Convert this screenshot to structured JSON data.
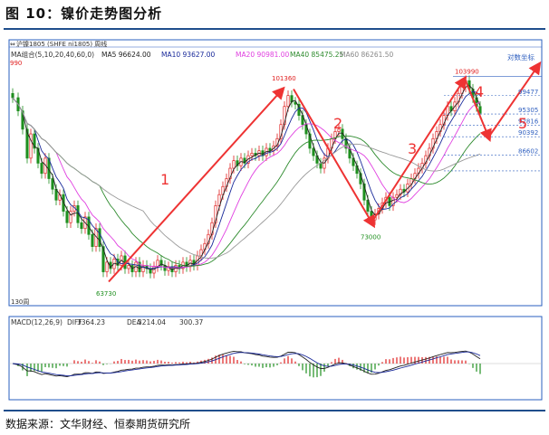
{
  "figure": {
    "title": "图 10：镍价走势图分析",
    "source": "数据来源：文华财经、恒泰期货研究所"
  },
  "chart_data": [
    {
      "type": "candlestick",
      "header": "沪镍1805 (SHFE ni1805) 周线",
      "ma_legend": [
        {
          "label": "MA组合(5,10,20,40,60,0)",
          "color": "#333333"
        },
        {
          "label": "MA5 96624.00",
          "color": "#222222"
        },
        {
          "label": "MA10 93627.00",
          "color": "#1a2a9a"
        },
        {
          "label": "MA20 90981.00",
          "color": "#e040e0"
        },
        {
          "label": "MA40 85475.25",
          "color": "#2e8b2e"
        },
        {
          "label": "MA60 86261.50",
          "color": "#888888"
        }
      ],
      "top_right_label": "对数坐标",
      "ylim": [
        61000,
        110000
      ],
      "y_left_top_label": "990",
      "x_left_bottom_label": "130周",
      "price_levels": [
        {
          "value": 103990,
          "label": "103990"
        },
        {
          "value": 99477,
          "label": "99477"
        },
        {
          "value": 95305,
          "label": "95305"
        },
        {
          "value": 92816,
          "label": "92816"
        },
        {
          "value": 90392,
          "label": "90392"
        },
        {
          "value": 86602,
          "label": "86602"
        }
      ],
      "annotations": [
        {
          "text": "101360",
          "value": 101360
        },
        {
          "text": "73000",
          "value": 73000
        },
        {
          "text": "63730",
          "value": 63730
        }
      ],
      "waves": [
        "1",
        "2",
        "3",
        "4",
        "5"
      ],
      "colors": {
        "up": "#e02020",
        "down": "#1f8f1f",
        "arrow": "#ee3333",
        "grid": "#2a5fbf"
      }
    },
    {
      "type": "macd",
      "legend": [
        {
          "label": "MACD(12,26,9)",
          "color": "#333333"
        },
        {
          "label": "DIFF",
          "color": "#333333"
        },
        {
          "label": "3364.23",
          "color": "#333333"
        },
        {
          "label": "DEA",
          "color": "#333333"
        },
        {
          "label": "3214.04",
          "color": "#333333"
        },
        {
          "label": "300.37",
          "color": "#333333"
        }
      ]
    }
  ]
}
